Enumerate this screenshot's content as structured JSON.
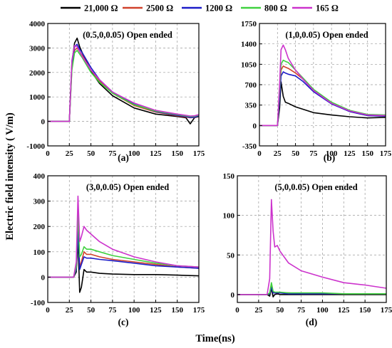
{
  "legend": {
    "placement": "top",
    "entries": [
      {
        "label": "21,000 Ω",
        "color": "#000000"
      },
      {
        "label": "2500 Ω",
        "color": "#d0412b"
      },
      {
        "label": "1200 Ω",
        "color": "#1c1cc8"
      },
      {
        "label": "800 Ω",
        "color": "#3fd13f"
      },
      {
        "label": "165 Ω",
        "color": "#cc33cc"
      }
    ]
  },
  "ylabel": "Electric field intensity ( V/m)",
  "xlabel": "Time(ns)",
  "chart_data": [
    {
      "type": "line",
      "panel_label": "(a)",
      "annotation": "(0.5,0,0.05) Open ended",
      "xlim": [
        0,
        175
      ],
      "ylim": [
        -1000,
        4000
      ],
      "grid": true,
      "xticks": [
        "0",
        "25",
        "50",
        "75",
        "100",
        "125",
        "150",
        "175"
      ],
      "yticks": [
        "-1000",
        "0",
        "1000",
        "2000",
        "3000",
        "4000"
      ],
      "x": [
        0,
        25,
        28,
        31,
        34,
        37,
        40,
        50,
        60,
        75,
        100,
        125,
        150,
        160,
        165,
        170,
        175
      ],
      "series": [
        {
          "name": "21,000 Ω",
          "values": [
            0,
            0,
            2400,
            3200,
            3400,
            3050,
            2800,
            2050,
            1550,
            1050,
            550,
            300,
            200,
            150,
            -100,
            150,
            200
          ]
        },
        {
          "name": "2500 Ω",
          "values": [
            0,
            0,
            2200,
            2900,
            3000,
            2850,
            2700,
            2100,
            1650,
            1150,
            650,
            380,
            230,
            180,
            150,
            160,
            220
          ]
        },
        {
          "name": "1200 Ω",
          "values": [
            0,
            0,
            2300,
            3050,
            3150,
            2950,
            2800,
            2200,
            1700,
            1200,
            700,
            400,
            250,
            200,
            160,
            170,
            230
          ]
        },
        {
          "name": "800 Ω",
          "values": [
            0,
            0,
            2100,
            2800,
            2900,
            2750,
            2600,
            2000,
            1600,
            1150,
            680,
            420,
            280,
            230,
            200,
            210,
            260
          ]
        },
        {
          "name": "165 Ω",
          "values": [
            0,
            0,
            2500,
            3100,
            3050,
            2850,
            2650,
            2100,
            1700,
            1200,
            750,
            450,
            300,
            250,
            220,
            230,
            280
          ]
        }
      ]
    },
    {
      "type": "line",
      "panel_label": "(b)",
      "annotation": "(1,0,0.05) Open ended",
      "xlim": [
        0,
        175
      ],
      "ylim": [
        -350,
        1750
      ],
      "grid": true,
      "xticks": [
        "0",
        "25",
        "50",
        "75",
        "100",
        "125",
        "150",
        "175"
      ],
      "yticks": [
        "-350",
        "0",
        "350",
        "700",
        "1050",
        "1400",
        "1750"
      ],
      "x": [
        0,
        25,
        28,
        30,
        33,
        36,
        40,
        50,
        60,
        75,
        100,
        125,
        150,
        175
      ],
      "series": [
        {
          "name": "21,000 Ω",
          "values": [
            0,
            0,
            300,
            750,
            500,
            400,
            380,
            320,
            280,
            220,
            180,
            150,
            130,
            140
          ]
        },
        {
          "name": "2500 Ω",
          "values": [
            0,
            0,
            500,
            950,
            1020,
            1000,
            980,
            900,
            800,
            600,
            380,
            240,
            170,
            160
          ]
        },
        {
          "name": "1200 Ω",
          "values": [
            0,
            0,
            450,
            850,
            920,
            900,
            880,
            850,
            760,
            580,
            370,
            240,
            170,
            160
          ]
        },
        {
          "name": "800 Ω",
          "values": [
            0,
            0,
            600,
            1050,
            1120,
            1100,
            1080,
            950,
            820,
            620,
            400,
            260,
            190,
            180
          ]
        },
        {
          "name": "165 Ω",
          "values": [
            0,
            0,
            700,
            1300,
            1380,
            1300,
            1150,
            950,
            800,
            600,
            380,
            250,
            180,
            170
          ]
        }
      ]
    },
    {
      "type": "line",
      "panel_label": "(c)",
      "annotation": "(3,0,0.05) Open ended",
      "xlim": [
        0,
        175
      ],
      "ylim": [
        -100,
        400
      ],
      "grid": true,
      "xticks": [
        "0",
        "25",
        "50",
        "75",
        "100",
        "125",
        "150",
        "175"
      ],
      "yticks": [
        "-100",
        "0",
        "100",
        "200",
        "300",
        "400"
      ],
      "x": [
        0,
        30,
        33,
        35,
        37,
        39,
        42,
        45,
        50,
        60,
        75,
        100,
        125,
        150,
        175
      ],
      "series": [
        {
          "name": "21,000 Ω",
          "values": [
            0,
            0,
            20,
            150,
            -60,
            -40,
            30,
            20,
            20,
            15,
            12,
            10,
            10,
            8,
            5
          ]
        },
        {
          "name": "2500 Ω",
          "values": [
            0,
            0,
            30,
            200,
            40,
            60,
            100,
            90,
            90,
            80,
            70,
            60,
            50,
            40,
            35
          ]
        },
        {
          "name": "1200 Ω",
          "values": [
            0,
            0,
            30,
            180,
            30,
            50,
            80,
            75,
            75,
            70,
            65,
            55,
            45,
            40,
            35
          ]
        },
        {
          "name": "800 Ω",
          "values": [
            0,
            0,
            40,
            250,
            80,
            90,
            120,
            110,
            110,
            100,
            85,
            70,
            55,
            45,
            40
          ]
        },
        {
          "name": "165 Ω",
          "values": [
            0,
            0,
            60,
            320,
            140,
            160,
            200,
            185,
            170,
            140,
            110,
            80,
            60,
            45,
            40
          ]
        }
      ]
    },
    {
      "type": "line",
      "panel_label": "(d)",
      "annotation": "(5,0,0.05) Open ended",
      "xlim": [
        0,
        175
      ],
      "ylim": [
        -10,
        150
      ],
      "grid": true,
      "xticks": [
        "0",
        "25",
        "50",
        "75",
        "100",
        "125",
        "150",
        "175"
      ],
      "yticks": [
        "0",
        "50",
        "100",
        "150"
      ],
      "x": [
        0,
        35,
        38,
        40,
        42,
        44,
        47,
        50,
        60,
        75,
        100,
        125,
        150,
        175
      ],
      "series": [
        {
          "name": "21,000 Ω",
          "values": [
            0,
            0,
            -2,
            8,
            -3,
            0,
            1,
            0,
            0,
            0,
            0,
            0,
            0,
            0
          ]
        },
        {
          "name": "2500 Ω",
          "values": [
            0,
            0,
            1,
            10,
            3,
            2,
            2,
            2,
            2,
            1,
            1,
            1,
            1,
            1
          ]
        },
        {
          "name": "1200 Ω",
          "values": [
            0,
            0,
            1,
            9,
            2,
            2,
            2,
            2,
            1,
            1,
            1,
            1,
            1,
            1
          ]
        },
        {
          "name": "800 Ω",
          "values": [
            0,
            0,
            2,
            15,
            4,
            3,
            3,
            3,
            2,
            2,
            2,
            1,
            1,
            1
          ]
        },
        {
          "name": "165 Ω",
          "values": [
            0,
            0,
            20,
            120,
            80,
            60,
            62,
            55,
            40,
            30,
            22,
            15,
            12,
            8
          ]
        }
      ]
    }
  ]
}
